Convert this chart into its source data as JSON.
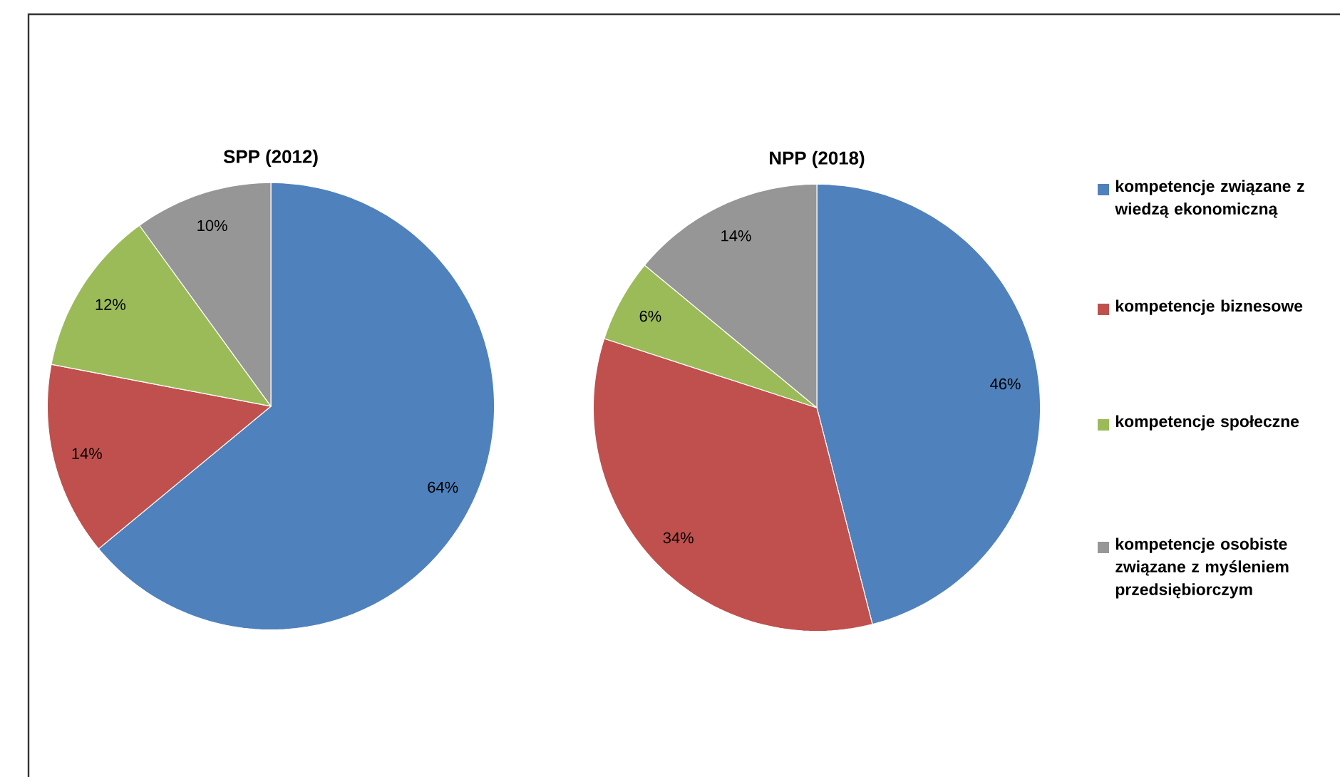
{
  "chart_data": [
    {
      "type": "pie",
      "title": "SPP (2012)",
      "categories": [
        "kompetencje związane z wiedzą ekonomiczną",
        "kompetencje biznesowe",
        "kompetencje społeczne",
        "kompetencje osobiste związane z myśleniem przedsiębiorczym"
      ],
      "values": [
        64,
        14,
        12,
        10
      ],
      "value_labels": [
        "64%",
        "14%",
        "12%",
        "10%"
      ],
      "colors": [
        "#4f81bd",
        "#c0504d",
        "#9bbb59",
        "#969696"
      ],
      "legend": "right"
    },
    {
      "type": "pie",
      "title": "NPP (2018)",
      "categories": [
        null,
        null,
        null,
        null
      ],
      "values": [
        46,
        34,
        6,
        14
      ],
      "value_labels": [
        "46%",
        "34%",
        "6%",
        "14%"
      ],
      "colors": [
        "#4f81bd",
        "#c0504d",
        "#9bbb59",
        "#969696"
      ]
    }
  ]
}
